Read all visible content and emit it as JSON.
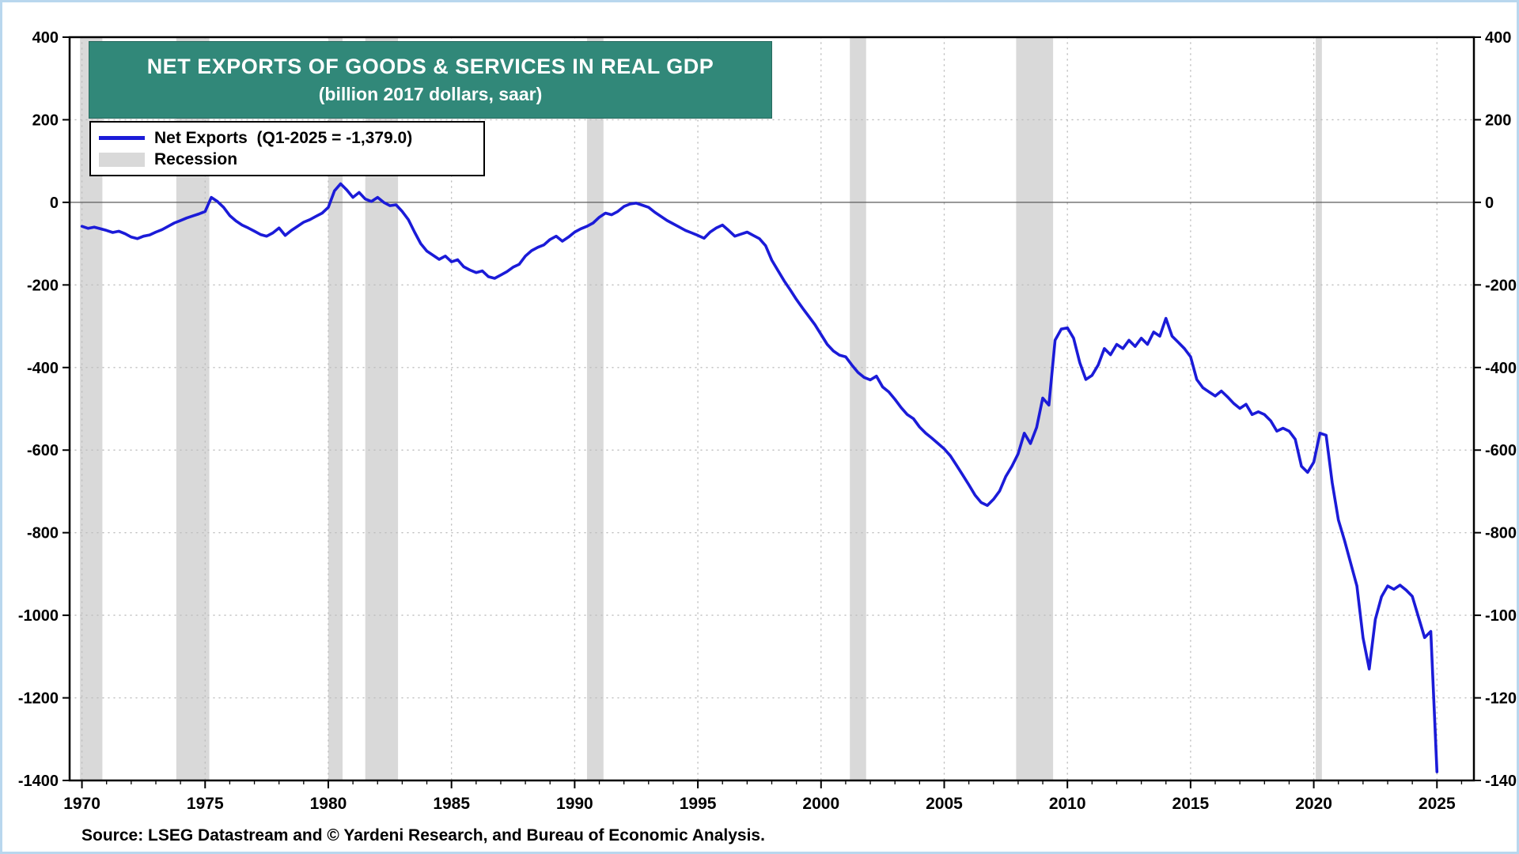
{
  "title": {
    "line1": "NET EXPORTS OF GOODS & SERVICES IN REAL GDP",
    "line2": "(billion 2017 dollars, saar)"
  },
  "legend": {
    "net_exports_label": "Net Exports  (Q1-2025 = -1,379.0)",
    "recession_label": "Recession"
  },
  "source_text": "Source: LSEG Datastream and © Yardeni Research, and Bureau of Economic Analysis.",
  "colors": {
    "line": "#1b1bd8",
    "recession": "#d9d9d9",
    "title_bg": "#318879",
    "grid": "#bdbdbd",
    "zero_line": "#5a5a5a",
    "frame": "#000000",
    "page_border": "#b9d7ee"
  },
  "chart_data": {
    "type": "line",
    "title": "NET EXPORTS OF GOODS & SERVICES IN REAL GDP",
    "subtitle": "(billion 2017 dollars, saar)",
    "xlabel": "",
    "ylabel": "billion 2017 dollars, saar",
    "xlim": [
      1969.5,
      2026.5
    ],
    "ylim": [
      -1400,
      400
    ],
    "ytick_step": 200,
    "xticks": [
      1970,
      1975,
      1980,
      1985,
      1990,
      1995,
      2000,
      2005,
      2010,
      2015,
      2020,
      2025
    ],
    "grid": true,
    "zero_line": true,
    "legend_position": "top-left",
    "last_point_label": "Q1-2025 = -1,379.0",
    "recessions": [
      [
        1969.92,
        1970.83
      ],
      [
        1973.83,
        1975.17
      ],
      [
        1980.0,
        1980.58
      ],
      [
        1981.5,
        1982.83
      ],
      [
        1990.5,
        1991.17
      ],
      [
        2001.17,
        2001.83
      ],
      [
        2007.92,
        2009.42
      ],
      [
        2020.08,
        2020.33
      ]
    ],
    "series": [
      {
        "name": "Net Exports",
        "color": "#1b1bd8",
        "x_start": 1970.0,
        "x_step": 0.25,
        "values": [
          -58,
          -63,
          -60,
          -64,
          -68,
          -73,
          -70,
          -76,
          -84,
          -88,
          -82,
          -79,
          -72,
          -66,
          -58,
          -50,
          -44,
          -38,
          -33,
          -28,
          -22,
          12,
          2,
          -12,
          -32,
          -45,
          -55,
          -62,
          -70,
          -78,
          -82,
          -74,
          -62,
          -80,
          -68,
          -58,
          -48,
          -42,
          -34,
          -26,
          -12,
          28,
          45,
          30,
          12,
          24,
          8,
          2,
          12,
          0,
          -8,
          -6,
          -22,
          -42,
          -72,
          -100,
          -118,
          -128,
          -138,
          -130,
          -144,
          -139,
          -156,
          -164,
          -170,
          -166,
          -180,
          -184,
          -176,
          -168,
          -157,
          -150,
          -130,
          -117,
          -109,
          -103,
          -90,
          -82,
          -94,
          -84,
          -72,
          -64,
          -58,
          -50,
          -36,
          -26,
          -30,
          -22,
          -10,
          -4,
          -2,
          -7,
          -12,
          -24,
          -34,
          -44,
          -52,
          -60,
          -68,
          -74,
          -80,
          -87,
          -72,
          -62,
          -55,
          -68,
          -82,
          -77,
          -72,
          -80,
          -88,
          -105,
          -140,
          -165,
          -190,
          -212,
          -235,
          -256,
          -276,
          -296,
          -320,
          -344,
          -360,
          -370,
          -374,
          -394,
          -412,
          -424,
          -430,
          -421,
          -447,
          -459,
          -477,
          -497,
          -514,
          -524,
          -544,
          -559,
          -571,
          -584,
          -597,
          -614,
          -637,
          -660,
          -684,
          -709,
          -727,
          -734,
          -719,
          -699,
          -664,
          -639,
          -609,
          -559,
          -584,
          -545,
          -474,
          -491,
          -334,
          -307,
          -304,
          -329,
          -388,
          -429,
          -419,
          -394,
          -354,
          -369,
          -344,
          -354,
          -334,
          -349,
          -329,
          -344,
          -314,
          -324,
          -281,
          -324,
          -339,
          -354,
          -374,
          -429,
          -449,
          -459,
          -469,
          -457,
          -471,
          -487,
          -499,
          -489,
          -514,
          -507,
          -514,
          -529,
          -554,
          -547,
          -554,
          -574,
          -639,
          -654,
          -629,
          -559,
          -564,
          -679,
          -769,
          -819,
          -874,
          -929,
          -1055,
          -1130,
          -1010,
          -955,
          -929,
          -937,
          -927,
          -939,
          -954,
          -1004,
          -1054,
          -1039,
          -1379
        ]
      }
    ]
  }
}
